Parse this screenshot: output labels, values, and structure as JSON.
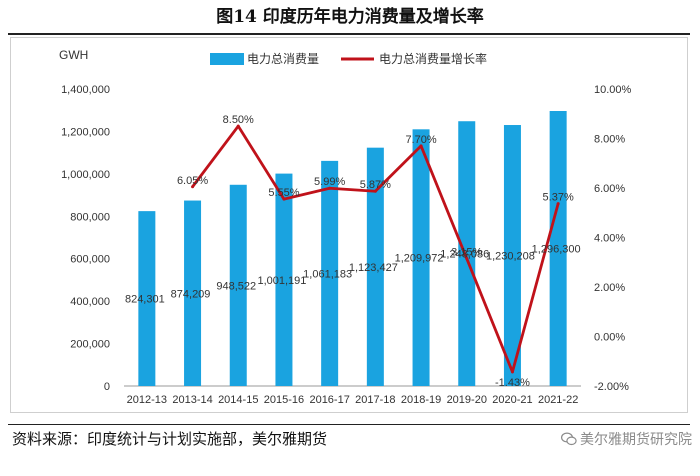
{
  "figure_title": "图14  印度历年电力消费量及增长率",
  "source_note": "资料来源：印度统计与计划实施部，美尔雅期货",
  "watermark": "美尔雅期货研究院",
  "colors": {
    "bar": "#1aa3e0",
    "line": "#c0121a",
    "axis": "#999999",
    "text": "#333333"
  },
  "chart_data": {
    "type": "bar+line",
    "title": "",
    "left_axis_unit": "GWH",
    "categories": [
      "2012-13",
      "2013-14",
      "2014-15",
      "2015-16",
      "2016-17",
      "2017-18",
      "2018-19",
      "2019-20",
      "2020-21",
      "2021-22"
    ],
    "series": [
      {
        "name": "电力总消费量",
        "type": "bar",
        "axis": "left",
        "values": [
          824301,
          874209,
          948522,
          1001191,
          1061183,
          1123427,
          1209972,
          1248086,
          1230208,
          1296300
        ],
        "labels": [
          "824,301",
          "874,209",
          "948,522",
          "1,001,191",
          "1,061,183",
          "1,123,427",
          "1,209,972",
          "1,248,086",
          "1,230,208",
          "1,296,300"
        ]
      },
      {
        "name": "电力总消费量增长率",
        "type": "line",
        "axis": "right",
        "values": [
          null,
          6.05,
          8.5,
          5.55,
          5.99,
          5.87,
          7.7,
          3.15,
          -1.43,
          5.37
        ],
        "labels": [
          null,
          "6.05%",
          "8.50%",
          "5.55%",
          "5.99%",
          "5.87%",
          "7.70%",
          "3.15%",
          "-1.43%",
          "5.37%"
        ]
      }
    ],
    "left_axis": {
      "min": 0,
      "max": 1400000,
      "step": 200000,
      "tick_labels": [
        "0",
        "200,000",
        "400,000",
        "600,000",
        "800,000",
        "1,000,000",
        "1,200,000",
        "1,400,000"
      ]
    },
    "right_axis": {
      "min": -2,
      "max": 10,
      "step": 2,
      "tick_labels": [
        "-2.00%",
        "0.00%",
        "2.00%",
        "4.00%",
        "6.00%",
        "8.00%",
        "10.00%"
      ]
    },
    "legend": {
      "position": "top-center",
      "entries": [
        "电力总消费量",
        "电力总消费量增长率"
      ]
    },
    "grid": false
  }
}
